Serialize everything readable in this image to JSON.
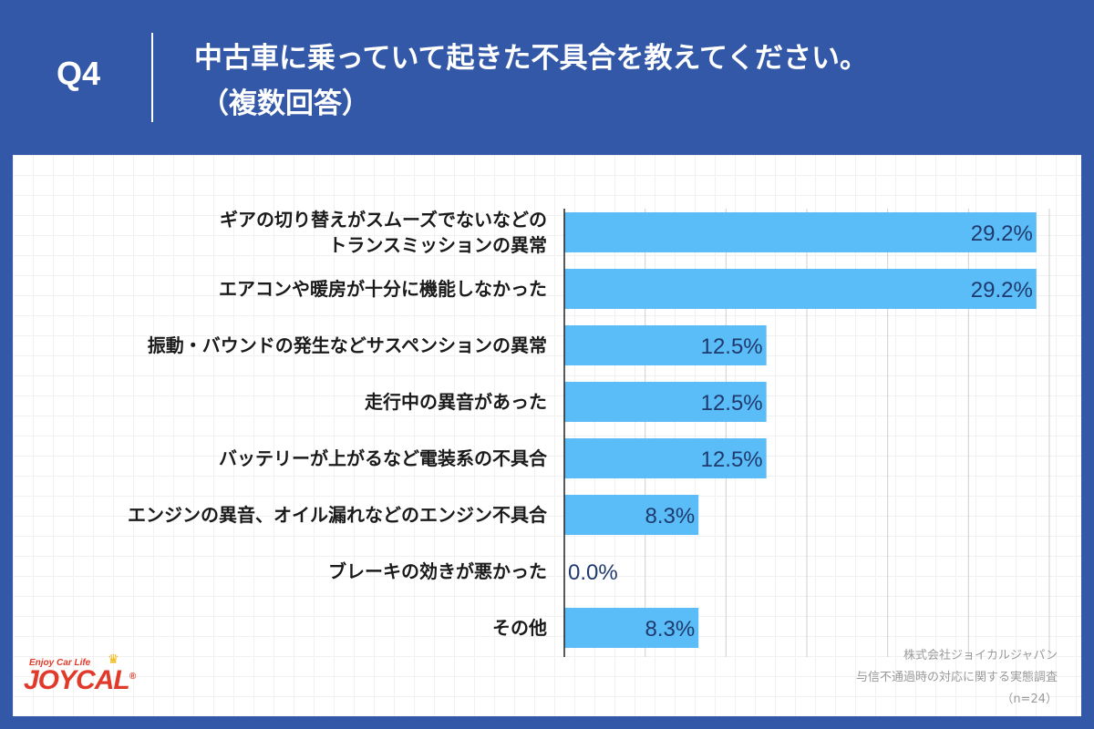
{
  "header": {
    "question_number": "Q4",
    "title": "中古車に乗っていて起きた不具合を教えてください。",
    "subtitle": "（複数回答）"
  },
  "chart_data": {
    "type": "bar",
    "orientation": "horizontal",
    "categories": [
      [
        "ギアの切り替えがスムーズでないなどの",
        "トランスミッションの異常"
      ],
      [
        "エアコンや暖房が十分に機能しなかった"
      ],
      [
        "振動・バウンドの発生などサスペンションの異常"
      ],
      [
        "走行中の異音があった"
      ],
      [
        "バッテリーが上がるなど電装系の不具合"
      ],
      [
        "エンジンの異音、オイル漏れなどのエンジン不具合"
      ],
      [
        "ブレーキの効きが悪かった"
      ],
      [
        "その他"
      ]
    ],
    "values": [
      29.2,
      29.2,
      12.5,
      12.5,
      12.5,
      8.3,
      0.0,
      8.3
    ],
    "value_labels": [
      "29.2%",
      "29.2%",
      "12.5%",
      "12.5%",
      "12.5%",
      "8.3%",
      "0.0%",
      "8.3%"
    ],
    "xlim": [
      0,
      30
    ],
    "grid": true,
    "bar_color": "#5bbdf7",
    "value_label_color": "#1f3a6e"
  },
  "source": {
    "company": "株式会社ジョイカルジャパン",
    "survey": "与信不通過時の対応に関する実態調査",
    "sample": "（n=24）"
  },
  "logo": {
    "tagline": "Enjoy Car Life",
    "brand": "JOYCAL",
    "mark": "®"
  },
  "colors": {
    "header_bg": "#3458a8",
    "panel_bg": "#ffffff",
    "accent_red": "#e23a2a"
  }
}
